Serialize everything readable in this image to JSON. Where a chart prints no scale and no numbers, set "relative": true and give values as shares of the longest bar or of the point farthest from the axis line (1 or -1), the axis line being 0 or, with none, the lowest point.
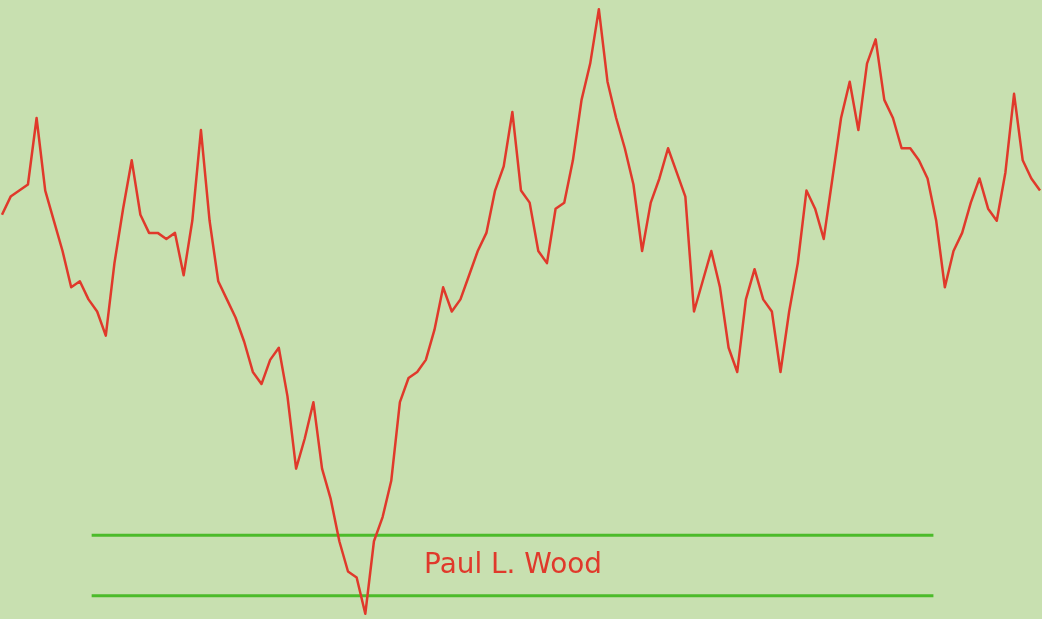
{
  "chart_data": {
    "type": "line",
    "relative": true,
    "categories": [
      null,
      null,
      null,
      null,
      null,
      null,
      null,
      null,
      null,
      null,
      null,
      null,
      null,
      null,
      null,
      null,
      null,
      null,
      null,
      null,
      null,
      null,
      null,
      null,
      null,
      null,
      null,
      null,
      null,
      null,
      null,
      null,
      null,
      null,
      null,
      null,
      null,
      null,
      null,
      null,
      null,
      null,
      null,
      null,
      null,
      null,
      null,
      null,
      null,
      null,
      null,
      null,
      null,
      null,
      null,
      null,
      null,
      null,
      null,
      null,
      null,
      null,
      null,
      null,
      null,
      null,
      null,
      null,
      null,
      null,
      null,
      null,
      null,
      null,
      null,
      null,
      null,
      null,
      null,
      null,
      null,
      null,
      null,
      null,
      null,
      null,
      null,
      null,
      null,
      null,
      null,
      null,
      null,
      null,
      null,
      null,
      null,
      null,
      null,
      null,
      null,
      null,
      null,
      null,
      null,
      null,
      null,
      null,
      null,
      null,
      null,
      null,
      null,
      null,
      null,
      null,
      null,
      null,
      null,
      null,
      null
    ],
    "series": [
      {
        "color": "#e0392b",
        "values": [
          0.66,
          0.69,
          0.7,
          0.71,
          0.82,
          0.7,
          0.65,
          0.6,
          0.54,
          0.55,
          0.52,
          0.5,
          0.46,
          0.58,
          0.67,
          0.75,
          0.66,
          0.63,
          0.63,
          0.62,
          0.63,
          0.56,
          0.65,
          0.8,
          0.65,
          0.55,
          0.52,
          0.49,
          0.45,
          0.4,
          0.38,
          0.42,
          0.44,
          0.36,
          0.24,
          0.29,
          0.35,
          0.24,
          0.19,
          0.12,
          0.07,
          0.06,
          0,
          0.12,
          0.16,
          0.22,
          0.35,
          0.39,
          0.4,
          0.42,
          0.47,
          0.54,
          0.5,
          0.52,
          0.56,
          0.6,
          0.63,
          0.7,
          0.74,
          0.83,
          0.7,
          0.68,
          0.6,
          0.58,
          0.67,
          0.68,
          0.75,
          0.85,
          0.91,
          1,
          0.88,
          0.82,
          0.77,
          0.71,
          0.6,
          0.68,
          0.72,
          0.77,
          0.73,
          0.69,
          0.5,
          0.55,
          0.6,
          0.54,
          0.44,
          0.4,
          0.52,
          0.57,
          0.52,
          0.5,
          0.4,
          0.5,
          0.58,
          0.7,
          0.67,
          0.62,
          0.72,
          0.82,
          0.88,
          0.8,
          0.91,
          0.95,
          0.85,
          0.82,
          0.77,
          0.77,
          0.75,
          0.72,
          0.65,
          0.54,
          0.6,
          0.63,
          0.68,
          0.72,
          0.67,
          0.65,
          0.73,
          0.86,
          0.75,
          0.72,
          0.7
        ]
      }
    ],
    "ref_lines": [
      {
        "axis": "y",
        "value": 0.13,
        "color": "#4cbb2a"
      },
      {
        "axis": "y",
        "value": 0.03,
        "color": "#4cbb2a"
      }
    ],
    "annotations": [
      "Paul L. Wood"
    ]
  }
}
